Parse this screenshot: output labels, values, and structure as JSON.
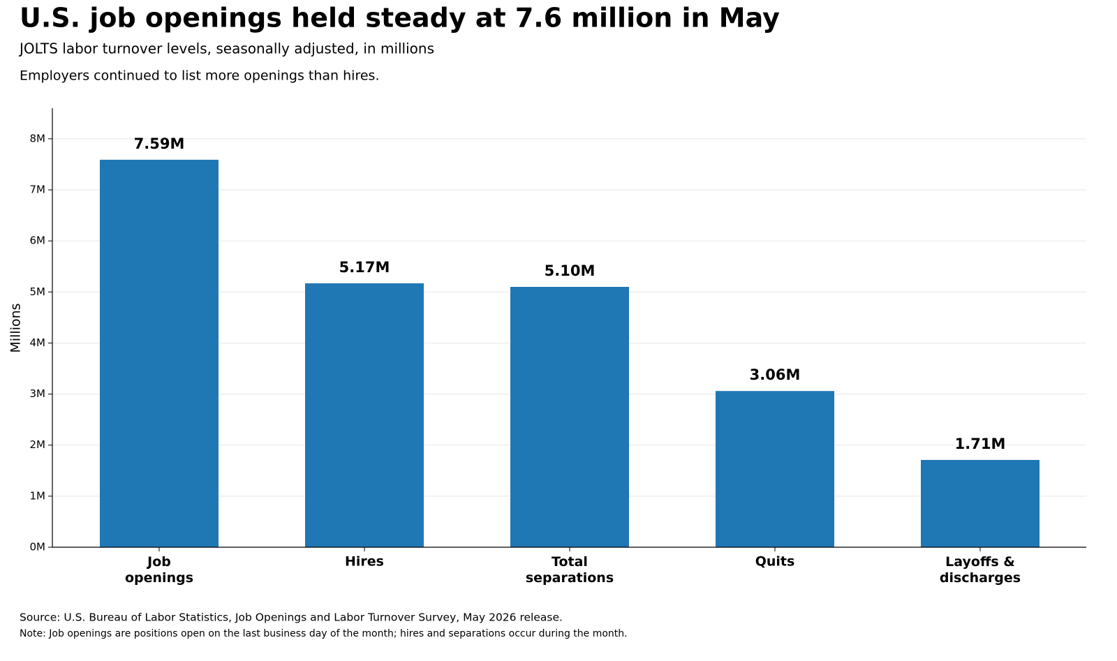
{
  "chart_data": {
    "type": "bar",
    "title": "U.S. job openings held steady at 7.6 million in May",
    "subtitle": "JOLTS labor turnover levels, seasonally adjusted, in millions",
    "annotation": "Employers continued to list more openings than hires.",
    "y_label": "Millions",
    "categories": [
      "Job\nopenings",
      "Hires",
      "Total\nseparations",
      "Quits",
      "Layoffs &\ndischarges"
    ],
    "values": [
      7.59,
      5.17,
      5.1,
      3.06,
      1.71
    ],
    "value_labels": [
      "7.59M",
      "5.17M",
      "5.10M",
      "3.06M",
      "1.71M"
    ],
    "color": "#1f77b4",
    "ylim": [
      0,
      8.6
    ],
    "yticks": [
      {
        "value": 0,
        "label": "0M"
      },
      {
        "value": 1,
        "label": "1M"
      },
      {
        "value": 2,
        "label": "2M"
      },
      {
        "value": 3,
        "label": "3M"
      },
      {
        "value": 4,
        "label": "4M"
      },
      {
        "value": 5,
        "label": "5M"
      },
      {
        "value": 6,
        "label": "6M"
      },
      {
        "value": 7,
        "label": "7M"
      },
      {
        "value": 8,
        "label": "8M"
      }
    ],
    "grid": true,
    "source": "Source: U.S. Bureau of Labor Statistics, Job Openings and Labor Turnover Survey, May 2026 release.",
    "note": "Note: Job openings are positions open on the last business day of the month; hires and separations occur during the month."
  }
}
